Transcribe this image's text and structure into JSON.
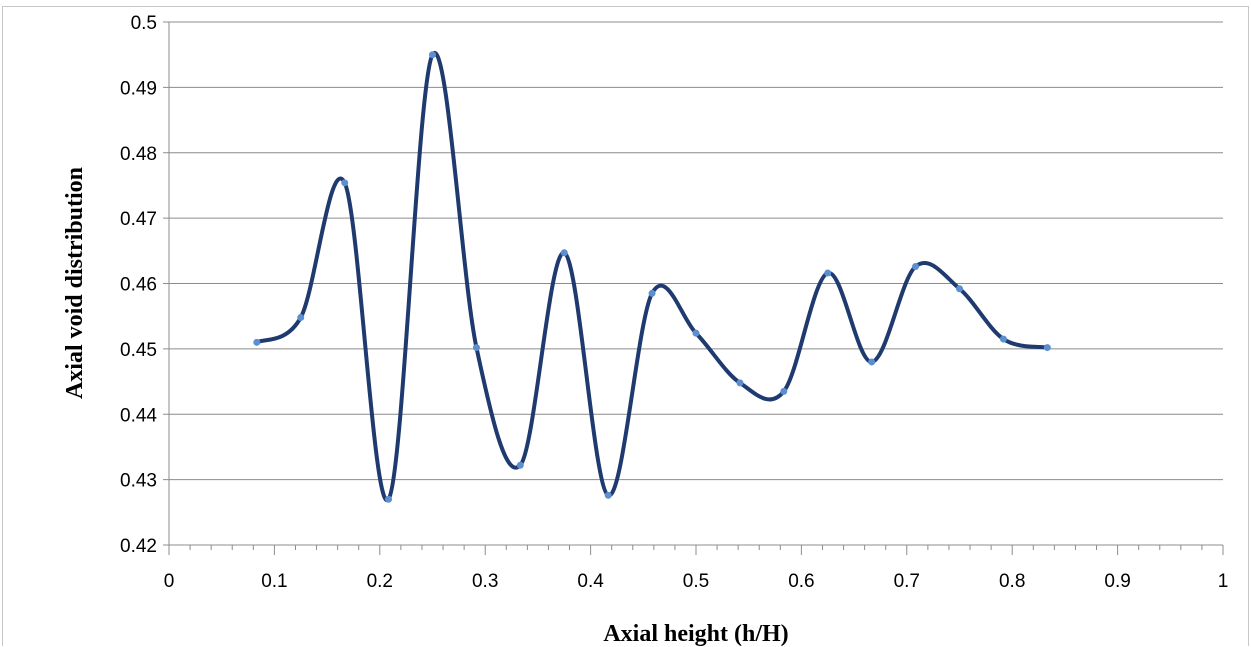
{
  "chart_data": {
    "type": "line",
    "title": "",
    "xlabel": "Axial height (h/H)",
    "ylabel": "Axial void distribution",
    "xlim": [
      0,
      1
    ],
    "ylim": [
      0.42,
      0.5
    ],
    "x_ticks": [
      "0",
      "0.1",
      "0.2",
      "0.3",
      "0.4",
      "0.5",
      "0.6",
      "0.7",
      "0.8",
      "0.9",
      "1"
    ],
    "y_ticks": [
      "0.42",
      "0.43",
      "0.44",
      "0.45",
      "0.46",
      "0.47",
      "0.48",
      "0.49",
      "0.5"
    ],
    "grid": true,
    "legend": "none",
    "smooth": true,
    "line_color": "#1f3a6e",
    "marker_color": "#5b8fd0",
    "series": [
      {
        "x": [
          0.0833,
          0.125,
          0.1667,
          0.2083,
          0.25,
          0.2917,
          0.3333,
          0.375,
          0.4167,
          0.4583,
          0.5,
          0.5417,
          0.5833,
          0.625,
          0.6667,
          0.7083,
          0.75,
          0.7917,
          0.8333
        ],
        "y": [
          0.451,
          0.4548,
          0.4754,
          0.427,
          0.495,
          0.4502,
          0.4322,
          0.4647,
          0.4276,
          0.4585,
          0.4524,
          0.4448,
          0.4435,
          0.4616,
          0.448,
          0.4626,
          0.4592,
          0.4515,
          0.4502
        ]
      }
    ]
  }
}
